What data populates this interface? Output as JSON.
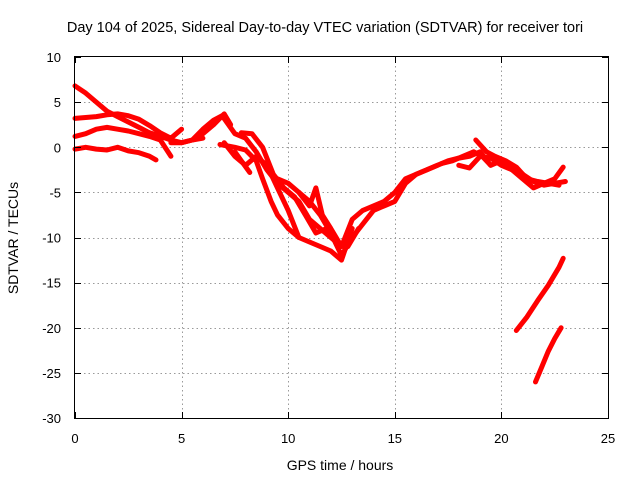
{
  "chart_data": {
    "type": "line",
    "title": "Day 104 of 2025, Sidereal Day-to-day VTEC variation (SDTVAR) for receiver tori",
    "xlabel": "GPS time / hours",
    "ylabel": "SDTVAR / TECUs",
    "xlim": [
      0,
      25
    ],
    "ylim": [
      -30,
      10
    ],
    "xticks": [
      0,
      5,
      10,
      15,
      20,
      25
    ],
    "yticks": [
      10,
      5,
      0,
      -5,
      -10,
      -15,
      -20,
      -25,
      -30
    ],
    "grid": true,
    "legend": "none",
    "color": "#ff0000",
    "series": [
      {
        "name": "arc-1",
        "x": [
          0,
          0.5,
          1,
          1.5,
          2,
          2.5,
          3,
          3.5,
          4,
          4.5,
          5,
          5.5,
          6
        ],
        "y": [
          6.8,
          6,
          5,
          4,
          3.4,
          2.8,
          2.2,
          1.6,
          1.2,
          0.8,
          0.5,
          0.8,
          1.0
        ]
      },
      {
        "name": "arc-2",
        "x": [
          0,
          0.5,
          1,
          1.5,
          2,
          2.5,
          3,
          3.5,
          4,
          4.5,
          5
        ],
        "y": [
          3.2,
          3.3,
          3.4,
          3.6,
          3.7,
          3.5,
          3.1,
          2.4,
          1.6,
          1.0,
          2.0
        ]
      },
      {
        "name": "arc-3",
        "x": [
          0,
          0.5,
          1,
          1.5,
          2,
          2.5,
          3,
          3.5,
          4,
          4.5
        ],
        "y": [
          1.2,
          1.5,
          2.0,
          2.2,
          2.0,
          1.8,
          1.5,
          1.2,
          0.8,
          -1.0
        ]
      },
      {
        "name": "arc-4",
        "x": [
          0,
          0.5,
          1,
          1.5,
          2,
          2.5,
          3,
          3.5,
          3.8
        ],
        "y": [
          -0.2,
          0.0,
          -0.2,
          -0.3,
          0.0,
          -0.4,
          -0.6,
          -1.0,
          -1.4
        ]
      },
      {
        "name": "arc-5",
        "x": [
          4.5,
          5,
          5.5,
          6,
          6.5,
          6.9,
          7.2,
          7.5,
          8,
          8.5,
          9,
          9.5,
          10,
          10.5,
          11,
          11.5,
          12,
          12.5,
          13,
          13.5,
          14,
          14.5,
          15,
          15.5,
          16,
          16.5,
          17
        ],
        "y": [
          0.5,
          0.5,
          0.8,
          2.0,
          3.0,
          3.5,
          2.5,
          1.5,
          1.0,
          -0.5,
          -2.5,
          -4,
          -5,
          -6,
          -8,
          -9,
          -10,
          -11,
          -8,
          -7,
          -6.5,
          -6,
          -5,
          -3.5,
          -3.0,
          -2.5,
          -2.0
        ]
      },
      {
        "name": "arc-6",
        "x": [
          5.5,
          6,
          6.5,
          7,
          7.3
        ],
        "y": [
          0.8,
          1.5,
          2.5,
          3.7,
          2.5
        ]
      },
      {
        "name": "arc-7",
        "x": [
          7.0,
          7.5,
          8,
          8.5,
          9,
          9.5,
          10,
          10.5
        ],
        "y": [
          0.5,
          -1,
          -2,
          -1,
          -2,
          -4.5,
          -7,
          -10
        ]
      },
      {
        "name": "arc-8",
        "x": [
          7.5,
          7.8,
          8.2
        ],
        "y": [
          -0.5,
          -1.5,
          -2.8
        ]
      },
      {
        "name": "arc-9",
        "x": [
          6.8,
          7.5,
          8,
          8.5,
          8.8,
          9.2,
          9.5,
          10,
          10.5,
          11,
          11.5,
          12,
          12.5,
          13
        ],
        "y": [
          0.3,
          0.0,
          -0.3,
          -1.5,
          -3.5,
          -6,
          -7.5,
          -9,
          -10,
          -10.5,
          -11,
          -11.5,
          -12.5,
          -9
        ]
      },
      {
        "name": "arc-10",
        "x": [
          7.8,
          8.3,
          8.8,
          9.3,
          9.8,
          10.3,
          10.8,
          11.3,
          11.8,
          12.3,
          12.8,
          13.3
        ],
        "y": [
          1.6,
          1.5,
          0.0,
          -3.0,
          -4.5,
          -5.5,
          -7.5,
          -9.5,
          -9.0,
          -10.5,
          -11.0,
          -9.0
        ]
      },
      {
        "name": "arc-11",
        "x": [
          9.5,
          10,
          10.5,
          11,
          11.5,
          12,
          12.5,
          13
        ],
        "y": [
          -3.5,
          -4,
          -5,
          -6,
          -7.5,
          -9.5,
          -12,
          -10
        ]
      },
      {
        "name": "arc-12",
        "x": [
          10.5,
          11,
          11.3,
          11.6,
          12,
          12.5,
          13,
          13.5,
          14,
          14.5,
          15,
          15.5,
          16,
          16.5,
          17,
          17.5,
          18,
          18.5,
          19,
          19.5
        ],
        "y": [
          -5,
          -6.5,
          -4.5,
          -7.5,
          -9,
          -11,
          -10,
          -8.5,
          -7,
          -6.5,
          -6,
          -4,
          -3,
          -2.5,
          -2,
          -1.5,
          -1.2,
          -1,
          -0.5,
          -2
        ]
      },
      {
        "name": "arc-13",
        "x": [
          17.2,
          17.7,
          18.2,
          18.7,
          19.1,
          19.5,
          20,
          20.5,
          21,
          21.5,
          22,
          22.5,
          23
        ],
        "y": [
          -1.8,
          -1.5,
          -1.0,
          -0.5,
          -1.0,
          -2.0,
          -1.5,
          -2.5,
          -3.0,
          -3.8,
          -4.2,
          -4.0,
          -3.8
        ]
      },
      {
        "name": "arc-14",
        "x": [
          18.0,
          18.5,
          19.0,
          19.5,
          20.0,
          20.5,
          21,
          21.5,
          22,
          22.5,
          22.9
        ],
        "y": [
          -2.0,
          -2.3,
          -1.0,
          -1.2,
          -2.0,
          -2.5,
          -3.5,
          -4.5,
          -4.0,
          -3.5,
          -2.2
        ]
      },
      {
        "name": "arc-15",
        "x": [
          18.8,
          19.3,
          19.7,
          20.2,
          20.7,
          21.2,
          21.7,
          22.2,
          22.7
        ],
        "y": [
          0.8,
          -0.5,
          -1.0,
          -1.5,
          -2.2,
          -3.5,
          -3.8,
          -4.0,
          -4.2
        ]
      },
      {
        "name": "arc-16",
        "x": [
          20.7,
          21.2,
          21.7,
          22.2,
          22.7,
          22.9
        ],
        "y": [
          -20.3,
          -18.8,
          -17.0,
          -15.3,
          -13.3,
          -12.3
        ]
      },
      {
        "name": "arc-17",
        "x": [
          21.6,
          21.9,
          22.2,
          22.5,
          22.8
        ],
        "y": [
          -26.0,
          -24.3,
          -22.6,
          -21.2,
          -20.0
        ]
      }
    ]
  }
}
